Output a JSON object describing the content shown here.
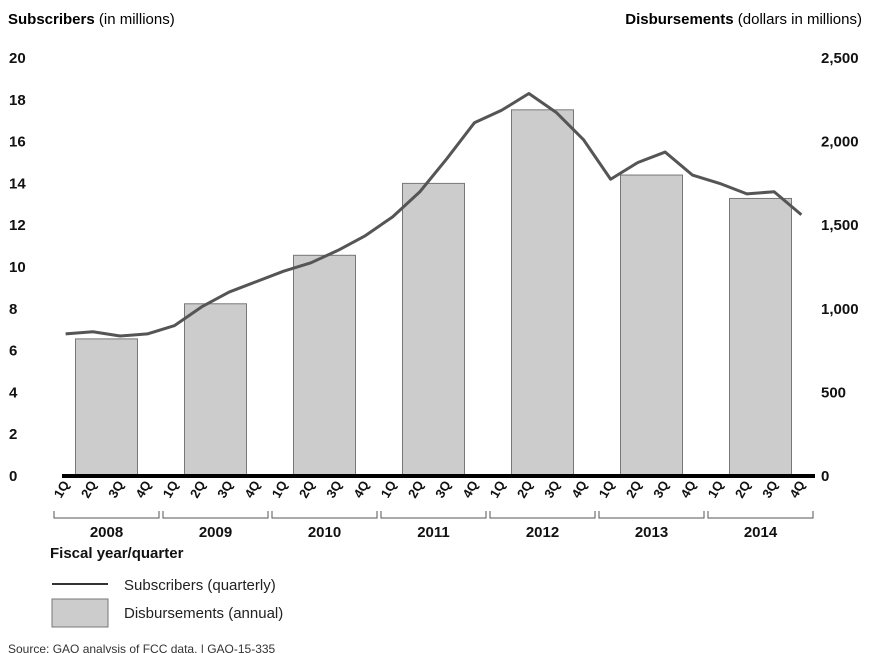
{
  "chart_data": {
    "type": "bar",
    "left_axis": {
      "title_bold": "Subscribers",
      "title_rest": " (in millions)",
      "ylim": [
        0,
        20
      ],
      "ticks": [
        "0",
        "2",
        "4",
        "6",
        "8",
        "10",
        "12",
        "14",
        "16",
        "18",
        "20"
      ]
    },
    "right_axis": {
      "title_bold": "Disbursements",
      "title_rest": " (dollars in millions)",
      "ylim": [
        0,
        2500
      ],
      "ticks": [
        "0",
        "500",
        "1,000",
        "1,500",
        "2,000",
        "2,500"
      ]
    },
    "years": [
      "2008",
      "2009",
      "2010",
      "2011",
      "2012",
      "2013",
      "2014"
    ],
    "quarters": [
      "1Q",
      "2Q",
      "3Q",
      "4Q"
    ],
    "x_title": "Fiscal year/quarter",
    "series": [
      {
        "name": "Subscribers (quarterly)",
        "type": "line",
        "axis": "left",
        "color": "#555555",
        "values": [
          6.8,
          6.9,
          6.7,
          6.8,
          7.2,
          8.1,
          8.8,
          9.3,
          9.8,
          10.2,
          10.8,
          11.5,
          12.4,
          13.6,
          15.2,
          16.9,
          17.5,
          18.3,
          17.4,
          16.1,
          14.2,
          15.0,
          15.5,
          14.4,
          14.0,
          13.5,
          13.6,
          12.5
        ]
      },
      {
        "name": "Disbursements (annual)",
        "type": "bar",
        "axis": "right",
        "color": "#cccccc",
        "values": [
          820,
          1030,
          1320,
          1750,
          2190,
          1800,
          1660
        ]
      }
    ],
    "legend": {
      "position": "bottom-left"
    }
  },
  "source": "Source: GAO analysis of FCC data.  |  GAO-15-335"
}
